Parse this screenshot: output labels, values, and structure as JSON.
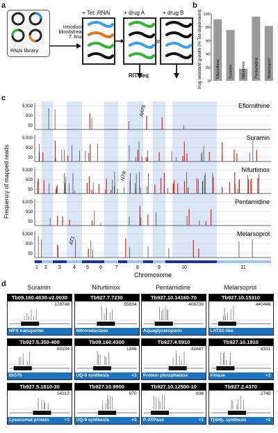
{
  "panel_labels": {
    "a": "a",
    "b": "b",
    "c": "c",
    "d": "d"
  },
  "panel_a": {
    "library_label": "RNAi library",
    "arrow_text_1": "Introduce into",
    "arrow_text_2": "bloodstream-form",
    "arrow_text_3": "T. brucei",
    "tet_label": "+ Tet: RNAi",
    "drugA_label": "+ drug A",
    "drugB_label": "+ drug B",
    "or_label": "or",
    "ritseq_label": "RIT-seq"
  },
  "chart_data": [
    {
      "type": "bar",
      "ylabel": "Drug resistant growth (% Tet-dependent)",
      "categories": [
        "Eflornithine",
        "Suramin",
        "Nifurtimox",
        "Pentamidine",
        "Melarsoprol"
      ],
      "values": [
        92,
        76,
        18,
        96,
        82
      ],
      "ylim": [
        0,
        100
      ],
      "yticks": [
        "0",
        "20",
        "40",
        "60",
        "80",
        "100"
      ]
    },
    {
      "type": "bar",
      "xlabel": "Chromosome",
      "ylabel": "Frequency of mapped reads",
      "tracks": [
        {
          "name": "Eflornithine",
          "yticks": [
            "5,000",
            "500",
            "50"
          ],
          "annotation": "AAT6"
        },
        {
          "name": "Suramin",
          "yticks": [
            "5,000",
            "500",
            "50"
          ],
          "annotation": ""
        },
        {
          "name": "Nifurtimox",
          "yticks": [
            "5,000",
            "500",
            "50"
          ],
          "annotation": "NTR"
        },
        {
          "name": "Pentamidine",
          "yticks": [
            "5,000",
            "500",
            "50"
          ],
          "annotation": ""
        },
        {
          "name": "Melarsoprol",
          "yticks": [
            "5,000",
            "500",
            "50"
          ],
          "annotation": "AT1"
        }
      ],
      "chromosomes": [
        "1",
        "2",
        "3",
        "4",
        "5",
        "6",
        "7",
        "8",
        "9",
        "10",
        "11"
      ]
    }
  ],
  "panel_d": {
    "columns": [
      "Suramin",
      "Nifurtimox",
      "Pentamidine",
      "Melarsoprol"
    ],
    "rows": [
      [
        {
          "id": "Tb09.160.4630-v2.0030",
          "count": "178748",
          "gene": "MFS transporter",
          "extra": ""
        },
        {
          "id": "Tb927.7.7230",
          "count": "55834",
          "gene": "Nitroreductase",
          "extra": ""
        },
        {
          "id": "Tb927.10.14160-70",
          "count": "406739",
          "gene": "Aquaglyceroporin",
          "extra": ""
        },
        {
          "id": "Tb927.10.15310",
          "count": "440446",
          "gene": "LATS1-like",
          "extra": ""
        }
      ],
      [
        {
          "id": "Tb927.5.350-400",
          "count": "83104",
          "gene": "ISG75",
          "extra": ""
        },
        {
          "id": "Tb09.160.4300",
          "count": "1246",
          "gene": "UQ-9 synthesis",
          "extra": "+3"
        },
        {
          "id": "Tb927.4.5910",
          "count": "41687",
          "gene": "Protein phosphatase",
          "extra": ""
        },
        {
          "id": "Tb927.10.1910",
          "count": "6331",
          "gene": "Kinase",
          "extra": "+2"
        }
      ],
      [
        {
          "id": "Tb927.5.1810-30",
          "count": "14312",
          "gene": "Lysosomal protein",
          "extra": "+3"
        },
        {
          "id": "Tb927.10.9900",
          "count": "970",
          "gene": "UQ-9 synthesis",
          "extra": "+3"
        },
        {
          "id": "Tb927.10.12500-10",
          "count": "836",
          "gene": "P-ATPase",
          "extra": "+1"
        },
        {
          "id": "Tb927.2.4370",
          "count": "2745",
          "gene": "T[SH]₂ synthesis",
          "extra": "+1"
        }
      ]
    ]
  },
  "colors": {
    "highlight": "#1a73c4",
    "red": "#e0201a",
    "shade": "#cfe0f5",
    "chrom_dark": "#1a2fa0",
    "chrom_light": "#9fc3ea"
  }
}
